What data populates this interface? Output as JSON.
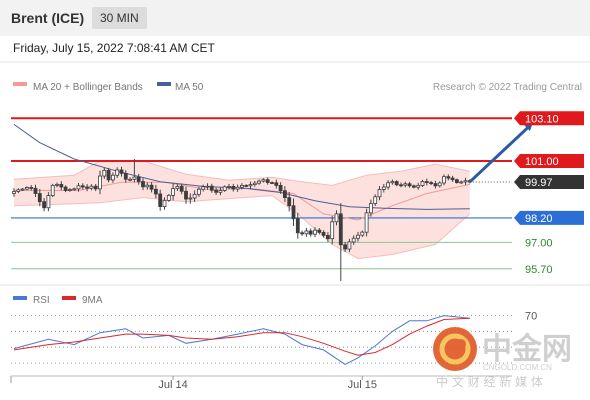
{
  "header": {
    "instrument": "Brent (ICE)",
    "timeframe": "30 MIN",
    "datetime": "Friday, July 15, 2022 7:08:41 AM CET"
  },
  "legend": {
    "ma20": "MA 20 + Bollinger Bands",
    "ma50": "MA 50",
    "credit": "Research © 2022 Trading Central",
    "rsi": "RSI",
    "rsi_ma": "9MA"
  },
  "colors": {
    "candle_up": "#3d3d3d",
    "candle_down": "#3d3d3d",
    "resistance": "#e0191c",
    "support": "#2b6fd6",
    "target": "#8cc78c",
    "ma20": "#f29a95",
    "ma50": "#4a5f99",
    "bollinger_fill": "#fde1df",
    "arrow": "#2f5aa3",
    "last_price": "#333333"
  },
  "watermark": {
    "brand": "中金网",
    "url": "CNGOLD.COM.CN",
    "sub": "中 文 财 经 新 媒 体"
  },
  "chart_data": [
    {
      "type": "candlestick",
      "title": "Brent (ICE)",
      "interval": "30 MIN",
      "ylim": [
        95.0,
        104.0
      ],
      "grid": true,
      "x_labels": [
        {
          "label": "Jul 14",
          "index": 37
        },
        {
          "label": "Jul 15",
          "index": 81
        }
      ],
      "levels": [
        {
          "value": 103.1,
          "label": "103.10",
          "kind": "resistance",
          "style": "line",
          "badge": true
        },
        {
          "value": 101.0,
          "label": "101.00",
          "kind": "resistance",
          "style": "line",
          "badge": true
        },
        {
          "value": 99.97,
          "label": "99.97",
          "kind": "last",
          "style": "dotted",
          "badge": true
        },
        {
          "value": 98.2,
          "label": "98.20",
          "kind": "support",
          "style": "line",
          "badge": true
        },
        {
          "value": 97.0,
          "label": "97.00",
          "kind": "target",
          "style": "line",
          "badge": false
        },
        {
          "value": 95.7,
          "label": "95.70",
          "kind": "target",
          "style": "line",
          "badge": false
        }
      ],
      "close": [
        99.5,
        99.58,
        99.62,
        99.7,
        99.66,
        99.4,
        99.0,
        98.7,
        99.3,
        99.8,
        99.85,
        99.72,
        99.55,
        99.6,
        99.63,
        99.78,
        99.72,
        99.66,
        99.76,
        99.63,
        100.26,
        100.54,
        100.07,
        100.3,
        100.56,
        100.39,
        100.1,
        100.1,
        100.21,
        99.99,
        99.73,
        99.81,
        99.61,
        99.38,
        98.76,
        99.06,
        99.31,
        99.64,
        99.75,
        99.51,
        99.13,
        99.18,
        99.36,
        99.61,
        99.73,
        99.76,
        99.56,
        99.46,
        99.55,
        99.73,
        99.75,
        99.62,
        99.71,
        99.8,
        99.78,
        99.84,
        99.91,
        100.01,
        100.08,
        99.94,
        99.93,
        99.8,
        99.54,
        99.2,
        98.8,
        98.16,
        97.47,
        97.42,
        97.56,
        97.4,
        97.6,
        97.49,
        97.34,
        97.18,
        98.01,
        98.4,
        96.88,
        96.67,
        97.02,
        97.2,
        97.35,
        97.5,
        98.45,
        98.91,
        99.24,
        99.6,
        99.72,
        99.93,
        99.99,
        99.83,
        99.81,
        99.88,
        99.78,
        99.71,
        99.8,
        99.99,
        99.94,
        99.89,
        99.78,
        99.92,
        100.23,
        100.16,
        100.08,
        99.94,
        99.97,
        100.03,
        99.97
      ],
      "wick": [
        0.33,
        0.16,
        0.11,
        0.12,
        0.23,
        0.34,
        0.45,
        0.35,
        0.34,
        0.15,
        0.18,
        0.31,
        0.16,
        0.13,
        0.12,
        0.28,
        0.25,
        0.29,
        0.2,
        0.22,
        0.53,
        0.28,
        0.24,
        0.28,
        0.26,
        0.32,
        0.32,
        0.2,
        0.3,
        0.31,
        0.32,
        0.28,
        0.31,
        0.43,
        0.42,
        0.3,
        0.14,
        0.5,
        0.23,
        0.29,
        0.46,
        0.46,
        0.39,
        0.24,
        0.22,
        0.29,
        0.24,
        0.26,
        0.29,
        0.14,
        0.25,
        0.25,
        0.27,
        0.22,
        0.12,
        0.29,
        0.21,
        0.16,
        0.14,
        0.21,
        0.12,
        0.31,
        0.31,
        0.45,
        0.56,
        0.71,
        0.59,
        0.21,
        0.3,
        0.24,
        0.3,
        0.2,
        0.21,
        0.32,
        0.56,
        0.35,
        1.06,
        0.29,
        0.3,
        0.29,
        0.33,
        0.17,
        0.42,
        0.38,
        0.24,
        0.34,
        0.3,
        0.26,
        0.2,
        0.13,
        0.22,
        0.21,
        0.19,
        0.12,
        0.25,
        0.16,
        0.28,
        0.16,
        0.27,
        0.16,
        0.23,
        0.23,
        0.22,
        0.11,
        0.13,
        0.29,
        0.14
      ],
      "spikes": [
        {
          "index": 28,
          "high": 101.1
        },
        {
          "index": 76,
          "low": 95.1
        }
      ],
      "ma20": [
        [
          0,
          99.55
        ],
        [
          15,
          99.55
        ],
        [
          25,
          99.95
        ],
        [
          35,
          99.95
        ],
        [
          45,
          99.6
        ],
        [
          55,
          99.65
        ],
        [
          65,
          99.4
        ],
        [
          72,
          98.4
        ],
        [
          80,
          98.1
        ],
        [
          88,
          98.8
        ],
        [
          96,
          99.4
        ],
        [
          106,
          99.85
        ]
      ],
      "ma50": [
        [
          0,
          102.8
        ],
        [
          6,
          101.9
        ],
        [
          14,
          101.1
        ],
        [
          24,
          100.5
        ],
        [
          34,
          99.98
        ],
        [
          44,
          99.75
        ],
        [
          54,
          99.65
        ],
        [
          62,
          99.45
        ],
        [
          70,
          99.05
        ],
        [
          78,
          98.75
        ],
        [
          86,
          98.68
        ],
        [
          96,
          98.62
        ],
        [
          106,
          98.65
        ]
      ],
      "bb_upper": [
        [
          0,
          100.1
        ],
        [
          14,
          100.3
        ],
        [
          20,
          101.0
        ],
        [
          30,
          101.0
        ],
        [
          40,
          100.35
        ],
        [
          50,
          100.05
        ],
        [
          60,
          100.2
        ],
        [
          66,
          100.0
        ],
        [
          74,
          99.8
        ],
        [
          82,
          100.3
        ],
        [
          90,
          100.5
        ],
        [
          98,
          100.85
        ],
        [
          106,
          100.5
        ]
      ],
      "bb_lower": [
        [
          0,
          98.8
        ],
        [
          14,
          98.9
        ],
        [
          20,
          98.95
        ],
        [
          30,
          99.2
        ],
        [
          40,
          99.0
        ],
        [
          50,
          99.15
        ],
        [
          60,
          99.3
        ],
        [
          66,
          98.4
        ],
        [
          74,
          96.9
        ],
        [
          80,
          96.2
        ],
        [
          88,
          96.4
        ],
        [
          98,
          96.9
        ],
        [
          106,
          98.4
        ]
      ],
      "forecast_arrow": {
        "from": [
          106,
          99.97
        ],
        "to": [
          121,
          103.1
        ]
      }
    },
    {
      "type": "line",
      "title": "RSI",
      "ylim": [
        25,
        78
      ],
      "y_ticks": [
        70
      ],
      "series": [
        {
          "name": "RSI",
          "x": [
            0,
            8,
            14,
            20,
            26,
            30,
            36,
            40,
            46,
            52,
            58,
            63,
            67,
            72,
            77,
            80,
            84,
            88,
            92,
            96,
            100,
            106
          ],
          "values": [
            45,
            52,
            48,
            57,
            60,
            53,
            55,
            49,
            52,
            56,
            60,
            56,
            48,
            44,
            33,
            38,
            47,
            58,
            66,
            66,
            70,
            68
          ]
        },
        {
          "name": "9MA",
          "x": [
            0,
            8,
            14,
            20,
            26,
            30,
            36,
            40,
            46,
            52,
            58,
            63,
            67,
            72,
            77,
            80,
            84,
            88,
            92,
            96,
            100,
            106
          ],
          "values": [
            44,
            48,
            50,
            53,
            56,
            56,
            55,
            53,
            52,
            54,
            57,
            57,
            54,
            49,
            43,
            40,
            42,
            48,
            56,
            62,
            67,
            68
          ]
        }
      ]
    }
  ]
}
